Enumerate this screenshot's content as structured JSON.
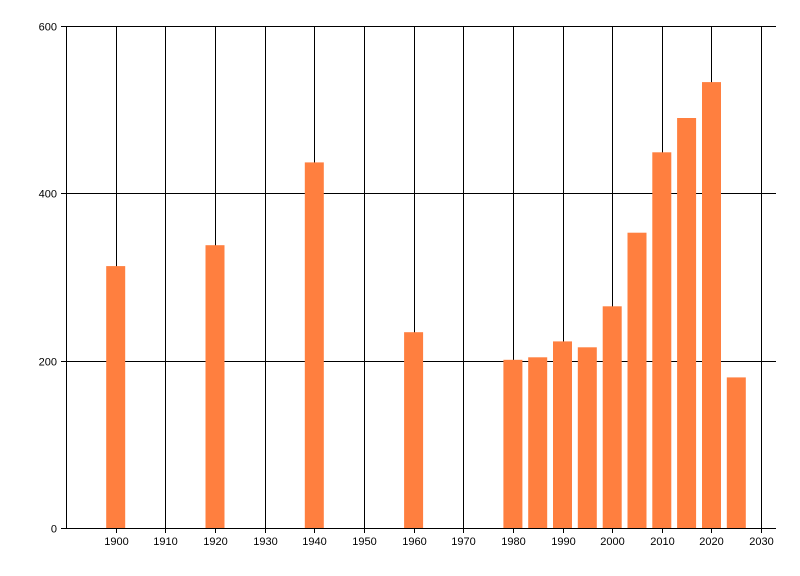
{
  "chart_data": {
    "type": "bar",
    "title": "",
    "xlabel": "",
    "ylabel": "",
    "xlim": [
      1890,
      2033
    ],
    "ylim": [
      0,
      600
    ],
    "x_ticks": [
      1900,
      1910,
      1920,
      1930,
      1940,
      1950,
      1960,
      1970,
      1980,
      1990,
      2000,
      2010,
      2020,
      2030
    ],
    "y_ticks": [
      0,
      200,
      400,
      600
    ],
    "grid": true,
    "legend": "none",
    "bar_color": "#ff7f3f",
    "points": [
      {
        "x": 1900,
        "y": 313
      },
      {
        "x": 1920,
        "y": 338
      },
      {
        "x": 1940,
        "y": 437
      },
      {
        "x": 1960,
        "y": 234
      },
      {
        "x": 1980,
        "y": 201
      },
      {
        "x": 1985,
        "y": 204
      },
      {
        "x": 1990,
        "y": 223
      },
      {
        "x": 1995,
        "y": 216
      },
      {
        "x": 2000,
        "y": 265
      },
      {
        "x": 2005,
        "y": 353
      },
      {
        "x": 2010,
        "y": 449
      },
      {
        "x": 2015,
        "y": 490
      },
      {
        "x": 2020,
        "y": 533
      },
      {
        "x": 2025,
        "y": 180
      }
    ]
  }
}
